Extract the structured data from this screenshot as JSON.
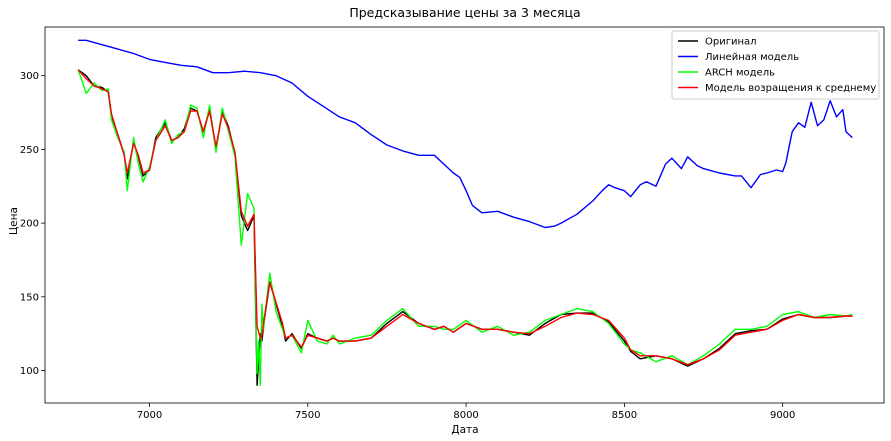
{
  "chart_data": {
    "type": "line",
    "title": "Предсказывание цены за 3 месяца",
    "xlabel": "Дата",
    "ylabel": "Цена",
    "xlim": [
      6670,
      9320
    ],
    "ylim": [
      78,
      333
    ],
    "xticks": [
      7000,
      7500,
      8000,
      8500,
      9000
    ],
    "yticks": [
      100,
      150,
      200,
      250,
      300
    ],
    "grid": false,
    "legend_position": "top-right",
    "series": [
      {
        "name": "Оригинал",
        "color": "#000000",
        "x": [
          6775,
          6800,
          6825,
          6850,
          6870,
          6880,
          6900,
          6920,
          6930,
          6950,
          6965,
          6980,
          7000,
          7020,
          7050,
          7070,
          7090,
          7110,
          7130,
          7150,
          7170,
          7190,
          7210,
          7230,
          7250,
          7270,
          7290,
          7310,
          7330,
          7340,
          7350,
          7355,
          7360,
          7370,
          7380,
          7400,
          7420,
          7430,
          7450,
          7480,
          7500,
          7530,
          7560,
          7580,
          7600,
          7650,
          7700,
          7750,
          7800,
          7850,
          7900,
          7930,
          7960,
          8000,
          8050,
          8100,
          8150,
          8200,
          8250,
          8300,
          8350,
          8400,
          8450,
          8500,
          8520,
          8550,
          8600,
          8650,
          8700,
          8750,
          8800,
          8850,
          8900,
          8950,
          9000,
          9050,
          9100,
          9150,
          9200,
          9220
        ],
        "y": [
          304,
          300,
          293,
          292,
          289,
          272,
          260,
          247,
          230,
          255,
          245,
          232,
          236,
          258,
          268,
          256,
          258,
          264,
          278,
          276,
          262,
          277,
          250,
          276,
          265,
          247,
          205,
          195,
          205,
          90,
          125,
          120,
          130,
          145,
          160,
          145,
          130,
          120,
          125,
          115,
          125,
          122,
          120,
          122,
          120,
          120,
          122,
          132,
          140,
          132,
          128,
          130,
          126,
          132,
          128,
          128,
          126,
          124,
          132,
          138,
          139,
          139,
          133,
          120,
          113,
          108,
          110,
          108,
          103,
          108,
          115,
          125,
          127,
          128,
          135,
          138,
          136,
          136,
          137,
          137
        ]
      },
      {
        "name": "Линейная модель",
        "color": "#0000ff",
        "x": [
          6775,
          6800,
          6850,
          6900,
          6950,
          7000,
          7050,
          7100,
          7150,
          7200,
          7250,
          7300,
          7350,
          7400,
          7450,
          7500,
          7550,
          7600,
          7650,
          7700,
          7750,
          7800,
          7850,
          7900,
          7930,
          7960,
          7980,
          8000,
          8020,
          8050,
          8100,
          8150,
          8200,
          8250,
          8280,
          8300,
          8350,
          8400,
          8430,
          8450,
          8470,
          8500,
          8520,
          8550,
          8570,
          8600,
          8630,
          8650,
          8680,
          8700,
          8730,
          8750,
          8800,
          8850,
          8870,
          8900,
          8930,
          8950,
          8980,
          9000,
          9010,
          9030,
          9050,
          9070,
          9090,
          9110,
          9130,
          9150,
          9170,
          9190,
          9200,
          9220
        ],
        "y": [
          324,
          324,
          321,
          318,
          315,
          311,
          309,
          307,
          306,
          302,
          302,
          303,
          302,
          300,
          295,
          286,
          279,
          272,
          268,
          260,
          253,
          249,
          246,
          246,
          240,
          234,
          231,
          222,
          212,
          207,
          208,
          204,
          201,
          197,
          198,
          200,
          206,
          215,
          222,
          226,
          224,
          222,
          218,
          226,
          228,
          225,
          240,
          244,
          237,
          245,
          239,
          237,
          234,
          232,
          232,
          224,
          233,
          234,
          236,
          235,
          241,
          262,
          268,
          265,
          282,
          266,
          270,
          283,
          272,
          277,
          262,
          258
        ]
      },
      {
        "name": "ARCH модель",
        "color": "#00ff00",
        "x": [
          6775,
          6800,
          6825,
          6850,
          6870,
          6880,
          6900,
          6920,
          6930,
          6950,
          6965,
          6980,
          7000,
          7020,
          7050,
          7070,
          7090,
          7110,
          7130,
          7150,
          7170,
          7190,
          7210,
          7230,
          7250,
          7270,
          7290,
          7310,
          7330,
          7340,
          7345,
          7350,
          7355,
          7360,
          7370,
          7380,
          7400,
          7420,
          7430,
          7450,
          7480,
          7500,
          7530,
          7560,
          7580,
          7600,
          7650,
          7700,
          7750,
          7800,
          7850,
          7900,
          7930,
          7960,
          8000,
          8050,
          8100,
          8150,
          8200,
          8250,
          8300,
          8350,
          8400,
          8450,
          8500,
          8520,
          8550,
          8600,
          8650,
          8700,
          8750,
          8800,
          8850,
          8900,
          8950,
          9000,
          9050,
          9100,
          9150,
          9200,
          9220
        ],
        "y": [
          304,
          288,
          295,
          290,
          291,
          270,
          258,
          248,
          222,
          258,
          240,
          228,
          238,
          256,
          270,
          254,
          260,
          262,
          280,
          278,
          258,
          280,
          248,
          278,
          262,
          245,
          185,
          220,
          210,
          98,
          120,
          90,
          145,
          128,
          148,
          166,
          140,
          128,
          122,
          124,
          112,
          134,
          120,
          118,
          124,
          118,
          122,
          124,
          134,
          142,
          130,
          130,
          128,
          128,
          134,
          126,
          130,
          124,
          126,
          134,
          138,
          142,
          140,
          132,
          118,
          114,
          112,
          106,
          110,
          104,
          110,
          118,
          128,
          128,
          130,
          138,
          140,
          136,
          138,
          137,
          138
        ]
      },
      {
        "name": "Модель возращения к среднему",
        "color": "#ff0000",
        "x": [
          6775,
          6800,
          6825,
          6850,
          6870,
          6880,
          6900,
          6920,
          6930,
          6950,
          6965,
          6980,
          7000,
          7020,
          7050,
          7070,
          7090,
          7110,
          7130,
          7150,
          7170,
          7190,
          7210,
          7230,
          7250,
          7270,
          7290,
          7310,
          7330,
          7340,
          7350,
          7355,
          7360,
          7370,
          7380,
          7400,
          7420,
          7430,
          7450,
          7480,
          7500,
          7530,
          7560,
          7580,
          7600,
          7650,
          7700,
          7750,
          7800,
          7850,
          7900,
          7930,
          7960,
          8000,
          8050,
          8100,
          8150,
          8200,
          8250,
          8300,
          8350,
          8400,
          8450,
          8500,
          8520,
          8550,
          8600,
          8650,
          8700,
          8750,
          8800,
          8850,
          8900,
          8950,
          9000,
          9050,
          9100,
          9150,
          9200,
          9220
        ],
        "y": [
          304,
          298,
          293,
          291,
          289,
          274,
          260,
          246,
          234,
          254,
          246,
          234,
          236,
          256,
          266,
          256,
          258,
          262,
          276,
          276,
          262,
          276,
          252,
          274,
          264,
          248,
          208,
          198,
          206,
          130,
          122,
          124,
          132,
          146,
          160,
          146,
          132,
          122,
          124,
          116,
          124,
          122,
          120,
          122,
          120,
          120,
          122,
          130,
          138,
          132,
          128,
          130,
          126,
          132,
          128,
          128,
          126,
          125,
          130,
          136,
          139,
          138,
          134,
          122,
          114,
          110,
          110,
          108,
          104,
          108,
          114,
          124,
          126,
          128,
          134,
          138,
          136,
          136,
          137,
          137
        ]
      }
    ]
  }
}
